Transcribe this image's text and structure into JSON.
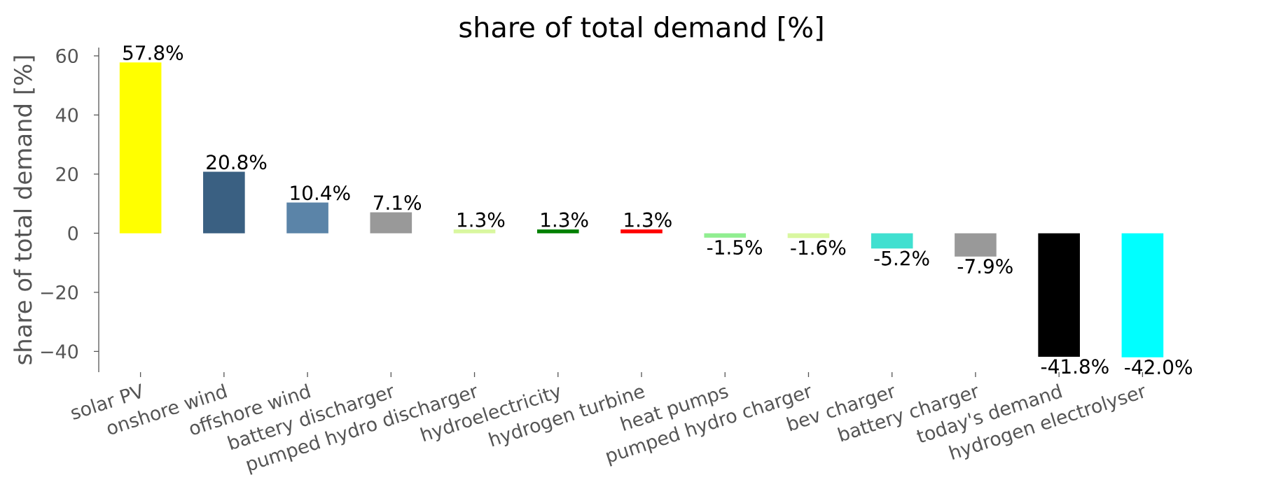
{
  "chart_data": {
    "type": "bar",
    "title": "share of total demand [%]",
    "ylabel": "share of total demand [%]",
    "categories": [
      "solar PV",
      "onshore wind",
      "offshore wind",
      "battery discharger",
      "pumped hydro discharger",
      "hydroelectricity",
      "hydrogen turbine",
      "heat pumps",
      "pumped hydro charger",
      "bev charger",
      "battery charger",
      "today's demand",
      "hydrogen electrolyser"
    ],
    "values": [
      57.8,
      20.8,
      10.4,
      7.1,
      1.3,
      1.3,
      1.3,
      -1.5,
      -1.6,
      -5.2,
      -7.9,
      -41.8,
      -42.0
    ],
    "colors": [
      "#ffff00",
      "#3a6082",
      "#5b84a8",
      "#999999",
      "#d9f7a0",
      "#008000",
      "#ff0000",
      "#90ee90",
      "#d9f7a0",
      "#40e0d0",
      "#999999",
      "#000000",
      "#00ffff"
    ],
    "value_labels": [
      "57.8%",
      "20.8%",
      "10.4%",
      "7.1%",
      "1.3%",
      "1.3%",
      "1.3%",
      "-1.5%",
      "-1.6%",
      "-5.2%",
      "-7.9%",
      "-41.8%",
      "-42.0%"
    ],
    "ylim": [
      -47,
      62.8
    ],
    "yticks": [
      {
        "value": -40,
        "label": "−40"
      },
      {
        "value": -20,
        "label": "−20"
      },
      0,
      20,
      40,
      60
    ]
  }
}
